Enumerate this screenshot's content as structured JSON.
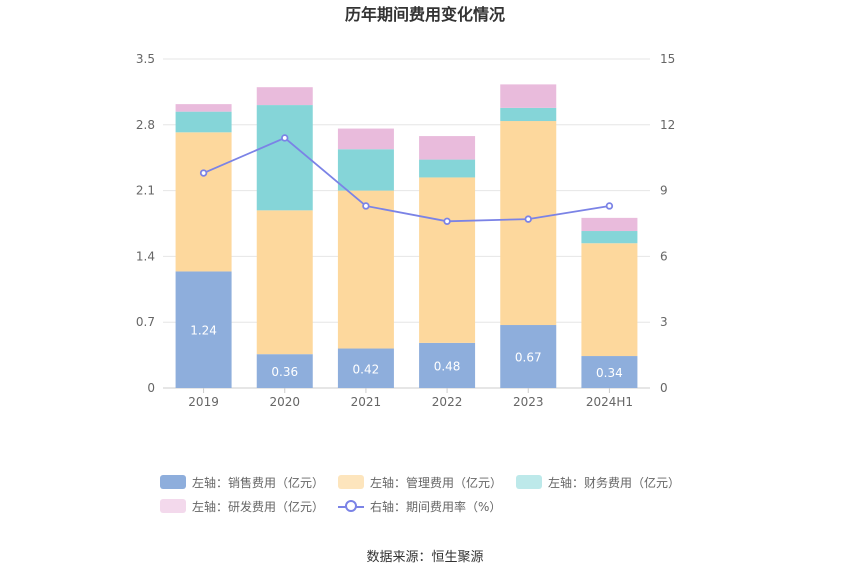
{
  "chart_data": {
    "type": "bar",
    "title": "历年期间费用变化情况",
    "categories": [
      "2019",
      "2020",
      "2021",
      "2022",
      "2023",
      "2024H1"
    ],
    "left_axis": {
      "ticks": [
        "0",
        "0.7",
        "1.4",
        "2.1",
        "2.8",
        "3.5"
      ],
      "ylim": [
        0,
        3.5
      ]
    },
    "right_axis": {
      "ticks": [
        "0",
        "3",
        "6",
        "9",
        "12",
        "15"
      ],
      "ylim": [
        0,
        15
      ]
    },
    "series": [
      {
        "name": "左轴：销售费用（亿元）",
        "type": "bar",
        "stack": true,
        "color": "#8eaedc",
        "values": [
          1.24,
          0.36,
          0.42,
          0.48,
          0.67,
          0.34
        ],
        "labels": [
          "1.24",
          "0.36",
          "0.42",
          "0.48",
          "0.67",
          "0.34"
        ]
      },
      {
        "name": "左轴：管理费用（亿元）",
        "type": "bar",
        "stack": true,
        "color": "#fdd89d",
        "values": [
          1.48,
          1.53,
          1.68,
          1.76,
          2.17,
          1.2
        ]
      },
      {
        "name": "左轴：财务费用（亿元）",
        "type": "bar",
        "stack": true,
        "color": "#85d5d8",
        "values": [
          0.22,
          1.12,
          0.44,
          0.19,
          0.14,
          0.13
        ]
      },
      {
        "name": "左轴：研发费用（亿元）",
        "type": "bar",
        "stack": true,
        "color": "#e9bbdc",
        "values": [
          0.08,
          0.19,
          0.22,
          0.25,
          0.25,
          0.14
        ]
      },
      {
        "name": "右轴：期间费用率（%）",
        "type": "line",
        "axis": "right",
        "color": "#7b83e6",
        "values": [
          9.8,
          11.4,
          8.3,
          7.6,
          7.7,
          8.3
        ]
      }
    ],
    "legend_position": "bottom",
    "grid": true
  },
  "legend": {
    "rows": [
      [
        {
          "label": "左轴：销售费用（亿元）",
          "color": "#8eaedc",
          "kind": "bar"
        },
        {
          "label": "左轴：管理费用（亿元）",
          "color": "#fde5bd",
          "kind": "bar"
        },
        {
          "label": "左轴：财务费用（亿元）",
          "color": "#bde9ea",
          "kind": "bar"
        }
      ],
      [
        {
          "label": "左轴：研发费用（亿元）",
          "color": "#f3d9ec",
          "kind": "bar"
        },
        {
          "label": "右轴：期间费用率（%）",
          "color": "#7b83e6",
          "kind": "line"
        }
      ]
    ]
  },
  "source": "数据来源：恒生聚源"
}
